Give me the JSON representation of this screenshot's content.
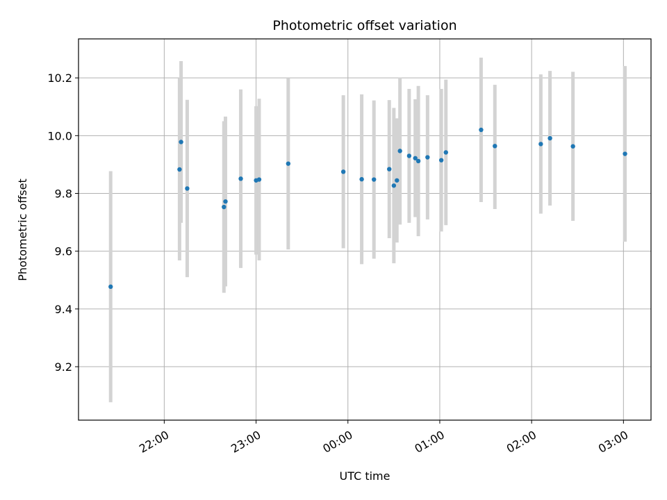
{
  "chart_data": {
    "type": "scatter",
    "title": "Photometric offset variation",
    "xlabel": "UTC time",
    "ylabel": "Photometric offset",
    "x_is_time": true,
    "x_ticks": [
      {
        "t": "22:00",
        "label": "22:00"
      },
      {
        "t": "23:00",
        "label": "23:00"
      },
      {
        "t": "24:00",
        "label": "00:00"
      },
      {
        "t": "25:00",
        "label": "01:00"
      },
      {
        "t": "26:00",
        "label": "02:00"
      },
      {
        "t": "27:00",
        "label": "03:00"
      }
    ],
    "y_ticks": [
      9.2,
      9.4,
      9.6,
      9.8,
      10.0,
      10.2
    ],
    "xlim": [
      "21:04",
      "27:18"
    ],
    "ylim": [
      9.015,
      10.335
    ],
    "grid": true,
    "marker_color": "#1f77b4",
    "errorbar_color": "#d3d3d3",
    "points": [
      {
        "t": "21:25",
        "y": 9.477,
        "lo": 9.077,
        "hi": 9.877
      },
      {
        "t": "22:10",
        "y": 9.883,
        "lo": 9.568,
        "hi": 10.198
      },
      {
        "t": "22:11",
        "y": 9.978,
        "lo": 9.698,
        "hi": 10.258
      },
      {
        "t": "22:15",
        "y": 9.817,
        "lo": 9.51,
        "hi": 10.124
      },
      {
        "t": "22:39",
        "y": 9.753,
        "lo": 9.456,
        "hi": 10.05
      },
      {
        "t": "22:40",
        "y": 9.772,
        "lo": 9.478,
        "hi": 10.066
      },
      {
        "t": "22:50",
        "y": 9.851,
        "lo": 9.542,
        "hi": 10.16
      },
      {
        "t": "23:00",
        "y": 9.845,
        "lo": 9.588,
        "hi": 10.102
      },
      {
        "t": "23:02",
        "y": 9.848,
        "lo": 9.568,
        "hi": 10.128
      },
      {
        "t": "23:21",
        "y": 9.903,
        "lo": 9.606,
        "hi": 10.2
      },
      {
        "t": "23:57",
        "y": 9.875,
        "lo": 9.61,
        "hi": 10.14
      },
      {
        "t": "24:09",
        "y": 9.849,
        "lo": 9.555,
        "hi": 10.143
      },
      {
        "t": "24:17",
        "y": 9.848,
        "lo": 9.574,
        "hi": 10.122
      },
      {
        "t": "24:27",
        "y": 9.884,
        "lo": 9.645,
        "hi": 10.123
      },
      {
        "t": "24:30",
        "y": 9.827,
        "lo": 9.558,
        "hi": 10.096
      },
      {
        "t": "24:32",
        "y": 9.845,
        "lo": 9.63,
        "hi": 10.06
      },
      {
        "t": "24:34",
        "y": 9.947,
        "lo": 9.692,
        "hi": 10.202
      },
      {
        "t": "24:40",
        "y": 9.93,
        "lo": 9.698,
        "hi": 10.162
      },
      {
        "t": "24:44",
        "y": 9.922,
        "lo": 9.718,
        "hi": 10.126
      },
      {
        "t": "24:46",
        "y": 9.912,
        "lo": 9.652,
        "hi": 10.172
      },
      {
        "t": "24:52",
        "y": 9.925,
        "lo": 9.71,
        "hi": 10.14
      },
      {
        "t": "25:01",
        "y": 9.915,
        "lo": 9.668,
        "hi": 10.162
      },
      {
        "t": "25:04",
        "y": 9.942,
        "lo": 9.69,
        "hi": 10.194
      },
      {
        "t": "25:27",
        "y": 10.02,
        "lo": 9.77,
        "hi": 10.27
      },
      {
        "t": "25:36",
        "y": 9.964,
        "lo": 9.746,
        "hi": 10.176
      },
      {
        "t": "26:06",
        "y": 9.971,
        "lo": 9.73,
        "hi": 10.212
      },
      {
        "t": "26:12",
        "y": 9.991,
        "lo": 9.758,
        "hi": 10.224
      },
      {
        "t": "26:27",
        "y": 9.963,
        "lo": 9.705,
        "hi": 10.221
      },
      {
        "t": "27:01",
        "y": 9.937,
        "lo": 9.633,
        "hi": 10.241
      }
    ]
  }
}
